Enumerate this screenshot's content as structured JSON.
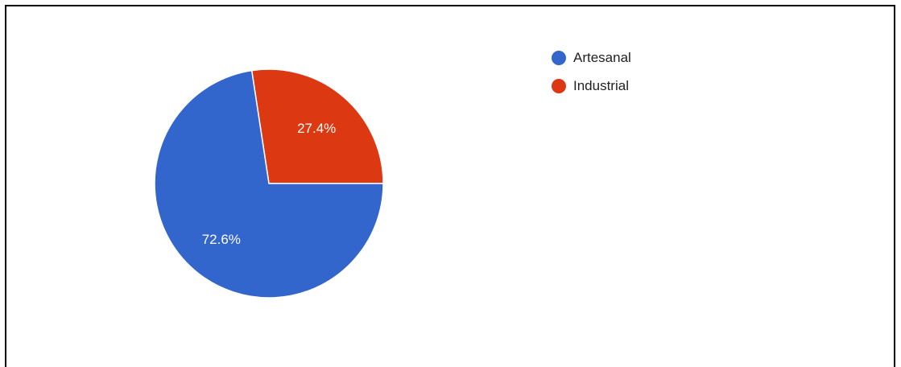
{
  "chart_data": {
    "type": "pie",
    "title": "",
    "slices": [
      {
        "label": "Artesanal",
        "value": 72.6,
        "display": "72.6%",
        "color": "#3366cc"
      },
      {
        "label": "Industrial",
        "value": 27.4,
        "display": "27.4%",
        "color": "#dc3912"
      }
    ],
    "legend_position": "top-right",
    "start_angle_deg": 0,
    "direction": "clockwise",
    "label_color": "#ffffff"
  },
  "legend": {
    "items": [
      {
        "label": "Artesanal",
        "color": "#3366cc"
      },
      {
        "label": "Industrial",
        "color": "#dc3912"
      }
    ]
  }
}
